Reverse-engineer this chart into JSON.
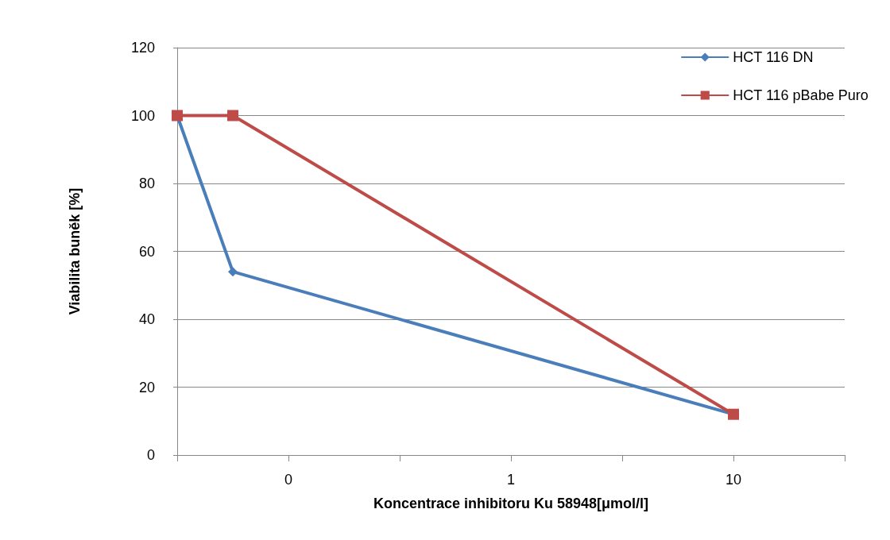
{
  "chart_data": {
    "type": "line",
    "xlabel": "Koncentrace inhibitoru Ku 58948[μmol/l]",
    "ylabel": "Viabilita buněk [%]",
    "categories": [
      null,
      null,
      "0",
      null,
      null,
      null,
      "1",
      null,
      null,
      null,
      "10",
      null,
      null
    ],
    "series": [
      {
        "name": "HCT 116 DN",
        "color": "#4a7ebb",
        "marker": "diamond",
        "values": [
          100,
          54,
          null,
          null,
          null,
          null,
          null,
          null,
          null,
          null,
          12,
          null,
          null
        ]
      },
      {
        "name": "HCT 116 pBabe Puro",
        "color": "#be4b48",
        "marker": "square",
        "values": [
          100,
          100,
          null,
          null,
          null,
          null,
          null,
          null,
          null,
          null,
          12,
          null,
          null
        ]
      }
    ],
    "ylim": [
      0,
      120
    ],
    "yticks": [
      0,
      20,
      40,
      60,
      80,
      100,
      120
    ],
    "grid": "y",
    "legend": "top right",
    "line_style": "solid"
  }
}
